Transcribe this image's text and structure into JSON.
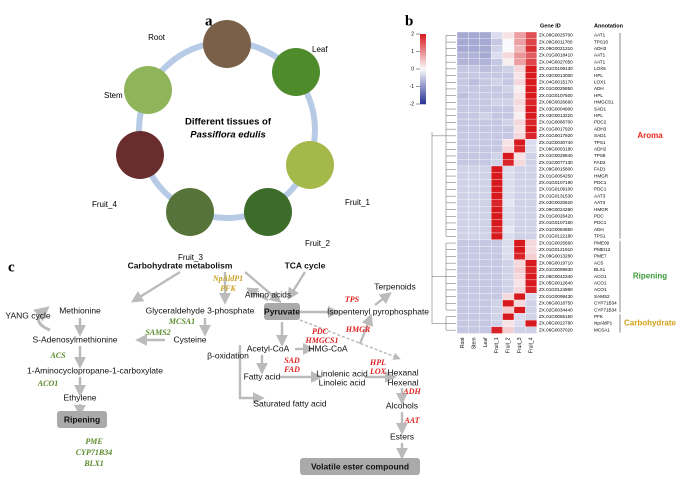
{
  "panel_a": {
    "label": "a",
    "center_title": "Different tissues of",
    "center_species": "Passiflora edulis",
    "tissues": [
      "Root",
      "Leaf",
      "Fruit_1",
      "Fruit_2",
      "Fruit_3",
      "Fruit_4",
      "Stem"
    ]
  },
  "panel_b": {
    "label": "b",
    "type": "heatmap",
    "header_gene": "Gene ID",
    "header_annotation": "Annotation",
    "columns": [
      "Root",
      "Stem",
      "Leaf",
      "Fruit_1",
      "Fruit_2",
      "Fruit_3",
      "Fruit_4"
    ],
    "colorbar_lim": [
      -2,
      2
    ],
    "colorbar_ticks": [
      2,
      1,
      0,
      -1,
      -2
    ],
    "groups": [
      {
        "name": "Aroma",
        "color": "#e8271c",
        "rows": [
          {
            "gene": "ZX.09G0025700",
            "annotation": "AAT1",
            "values": [
              -0.8,
              -0.8,
              -0.8,
              -0.3,
              0.2,
              0.8,
              1.5
            ]
          },
          {
            "gene": "ZX.08G0011780",
            "annotation": "TPS10",
            "values": [
              -0.8,
              -0.8,
              -0.8,
              -0.5,
              0,
              0.8,
              1.6
            ]
          },
          {
            "gene": "ZX.09G0021310",
            "annotation": "ADH3",
            "values": [
              -0.8,
              -0.8,
              -0.8,
              -0.4,
              0,
              0.6,
              1.8
            ]
          },
          {
            "gene": "ZX.01G0018410",
            "annotation": "AAT1",
            "values": [
              -0.7,
              -0.7,
              -0.8,
              -0.3,
              0.3,
              0.9,
              1.4
            ]
          },
          {
            "gene": "ZX.04G0027050",
            "annotation": "AAT1",
            "values": [
              -0.7,
              -0.7,
              -0.7,
              -0.5,
              0.1,
              0.8,
              1.6
            ]
          },
          {
            "gene": "ZX.01G0109130",
            "annotation": "LOX5",
            "values": [
              -0.5,
              -0.5,
              -0.6,
              -0.5,
              -0.4,
              0.3,
              2
            ]
          },
          {
            "gene": "ZX.03G0013000",
            "annotation": "HPL",
            "values": [
              -0.5,
              -0.5,
              -0.5,
              -0.5,
              -0.5,
              0.2,
              2
            ]
          },
          {
            "gene": "ZX.04G0015170",
            "annotation": "LOX1",
            "values": [
              -0.5,
              -0.6,
              -0.5,
              -0.4,
              -0.5,
              0.3,
              2
            ]
          },
          {
            "gene": "ZX.01G0025850",
            "annotation": "ADH",
            "values": [
              -0.5,
              -0.5,
              -0.5,
              -0.5,
              -0.4,
              0.1,
              2
            ]
          },
          {
            "gene": "ZX.01G0107500",
            "annotation": "HPL",
            "values": [
              -0.6,
              -0.5,
              -0.5,
              -0.5,
              -0.5,
              0.2,
              2
            ]
          },
          {
            "gene": "ZX.06G0026660",
            "annotation": "HMGCS1",
            "values": [
              -0.5,
              -0.5,
              -0.5,
              -0.4,
              -0.4,
              0.3,
              1.9
            ]
          },
          {
            "gene": "ZX.03G0004900",
            "annotation": "SAD1",
            "values": [
              -0.5,
              -0.5,
              -0.5,
              -0.5,
              -0.5,
              0.2,
              2
            ]
          },
          {
            "gene": "ZX.03G0013220",
            "annotation": "HPL",
            "values": [
              -0.5,
              -0.5,
              -0.4,
              -0.5,
              -0.5,
              0.1,
              2
            ]
          },
          {
            "gene": "ZX.01G0066700",
            "annotation": "PDC2",
            "values": [
              -0.5,
              -0.5,
              -0.5,
              -0.5,
              -0.4,
              0.3,
              1.9
            ]
          },
          {
            "gene": "ZX.01G0017920",
            "annotation": "ADH3",
            "values": [
              -0.5,
              -0.5,
              -0.5,
              -0.5,
              -0.5,
              0.2,
              2
            ]
          },
          {
            "gene": "ZX.01G0017920",
            "annotation": "SAD1",
            "values": [
              -0.5,
              -0.5,
              -0.5,
              -0.5,
              -0.5,
              0.3,
              1.9
            ]
          },
          {
            "gene": "ZX.01G0030740",
            "annotation": "TPS1",
            "values": [
              -0.5,
              -0.5,
              -0.5,
              -0.5,
              0.2,
              2,
              -0.3
            ]
          },
          {
            "gene": "ZX.09G0003180",
            "annotation": "ADH2",
            "values": [
              -0.5,
              -0.5,
              -0.5,
              -0.5,
              0.3,
              1.9,
              -0.3
            ]
          },
          {
            "gene": "ZX.01G0029840",
            "annotation": "TPS8",
            "values": [
              -0.5,
              -0.5,
              -0.5,
              -0.4,
              2,
              0.2,
              -0.4
            ]
          },
          {
            "gene": "ZX.01G0077130",
            "annotation": "FAD2",
            "values": [
              -0.5,
              -0.5,
              -0.5,
              -0.4,
              1.9,
              0.3,
              -0.4
            ]
          },
          {
            "gene": "ZX.09G0015800",
            "annotation": "FAD1",
            "values": [
              -0.4,
              -0.4,
              -0.4,
              2,
              -0.3,
              -0.4,
              -0.4
            ]
          },
          {
            "gene": "ZX.01G0054250",
            "annotation": "HMGR",
            "values": [
              -0.4,
              -0.4,
              -0.4,
              2,
              -0.3,
              -0.4,
              -0.4
            ]
          },
          {
            "gene": "ZX.01G0107190",
            "annotation": "PDC1",
            "values": [
              -0.4,
              -0.4,
              -0.4,
              2,
              -0.3,
              -0.4,
              -0.4
            ]
          },
          {
            "gene": "ZX.01G0109100",
            "annotation": "PDC1",
            "values": [
              -0.4,
              -0.4,
              -0.4,
              2,
              -0.3,
              -0.4,
              -0.4
            ]
          },
          {
            "gene": "ZX.01G0131530",
            "annotation": "AAT3",
            "values": [
              -0.4,
              -0.4,
              -0.4,
              2,
              -0.3,
              -0.4,
              -0.4
            ]
          },
          {
            "gene": "ZX.03G0020620",
            "annotation": "AAT3",
            "values": [
              -0.4,
              -0.4,
              -0.4,
              1.9,
              -0.2,
              -0.4,
              -0.4
            ]
          },
          {
            "gene": "ZX.09G0024280",
            "annotation": "HMGR",
            "values": [
              -0.4,
              -0.4,
              -0.4,
              2,
              -0.3,
              -0.4,
              -0.4
            ]
          },
          {
            "gene": "ZX.01G0026420",
            "annotation": "PDC",
            "values": [
              -0.4,
              -0.4,
              -0.4,
              2,
              -0.3,
              -0.4,
              -0.4
            ]
          },
          {
            "gene": "ZX.01G0107160",
            "annotation": "PDC1",
            "values": [
              -0.4,
              -0.4,
              -0.4,
              2,
              -0.3,
              -0.4,
              -0.4
            ]
          },
          {
            "gene": "ZX.01G0084850",
            "annotation": "ADH",
            "values": [
              -0.4,
              -0.4,
              -0.4,
              1.9,
              -0.2,
              -0.4,
              -0.4
            ]
          },
          {
            "gene": "ZX.01G0122180",
            "annotation": "TPS1",
            "values": [
              -0.4,
              -0.4,
              -0.4,
              2,
              -0.3,
              -0.4,
              -0.4
            ]
          }
        ]
      },
      {
        "name": "Ripening",
        "color": "#3a9a3a",
        "rows": [
          {
            "gene": "ZX.01G0025660",
            "annotation": "PME09",
            "values": [
              -0.5,
              -0.5,
              -0.5,
              -0.5,
              -0.3,
              2,
              0.3
            ]
          },
          {
            "gene": "ZX.01G0121910",
            "annotation": "PMEI12",
            "values": [
              -0.5,
              -0.5,
              -0.5,
              -0.5,
              -0.3,
              2,
              0.3
            ]
          },
          {
            "gene": "ZX.09G0013280",
            "annotation": "PME7",
            "values": [
              -0.5,
              -0.5,
              -0.5,
              -0.5,
              -0.3,
              1.9,
              0.4
            ]
          },
          {
            "gene": "ZX.06G0019710",
            "annotation": "ACS",
            "values": [
              -0.5,
              -0.5,
              -0.5,
              -0.5,
              -0.4,
              0.3,
              2
            ]
          },
          {
            "gene": "ZX.01G0099930",
            "annotation": "BLX1",
            "values": [
              -0.5,
              -0.5,
              -0.5,
              -0.5,
              -0.4,
              0.4,
              1.9
            ]
          },
          {
            "gene": "ZX.06G0042340",
            "annotation": "ACO1",
            "values": [
              -0.5,
              -0.5,
              -0.5,
              -0.5,
              -0.4,
              0.3,
              2
            ]
          },
          {
            "gene": "ZX.05G0012640",
            "annotation": "ACO1",
            "values": [
              -0.5,
              -0.5,
              -0.5,
              -0.5,
              -0.4,
              0.2,
              2
            ]
          },
          {
            "gene": "ZX.01G0124860",
            "annotation": "ACO1",
            "values": [
              -0.5,
              -0.5,
              -0.5,
              -0.5,
              -0.4,
              0.3,
              1.9
            ]
          },
          {
            "gene": "ZX.01G0099430",
            "annotation": "SAMS2",
            "values": [
              -0.5,
              -0.5,
              -0.5,
              -0.5,
              0.3,
              2,
              -0.3
            ]
          },
          {
            "gene": "ZX.06G0018750",
            "annotation": "CYP71B34",
            "values": [
              -0.5,
              -0.5,
              -0.5,
              -0.4,
              2,
              0.3,
              -0.4
            ]
          },
          {
            "gene": "ZX.02G0034440",
            "annotation": "CYP71B34",
            "values": [
              -0.5,
              -0.5,
              -0.5,
              -0.4,
              0.4,
              2,
              -0.4
            ]
          }
        ]
      },
      {
        "name": "Carbohydrate",
        "color": "#d4a017",
        "rows": [
          {
            "gene": "ZX.01G0065150",
            "annotation": "PFK",
            "values": [
              -0.5,
              -0.5,
              -0.5,
              -0.4,
              2,
              -0.3,
              -0.4
            ]
          },
          {
            "gene": "ZX.06G0022780",
            "annotation": "NpAldP1",
            "values": [
              -0.5,
              -0.5,
              -0.5,
              -0.4,
              0.2,
              -0.3,
              2
            ]
          },
          {
            "gene": "ZX.06G0037020",
            "annotation": "MCSA1",
            "values": [
              -0.5,
              -0.5,
              -0.5,
              1.9,
              0.4,
              -0.4,
              -0.4
            ]
          }
        ]
      }
    ]
  },
  "panel_c": {
    "label": "c",
    "compounds": [
      "Carbohydrate metabolism",
      "TCA cycle",
      "Amino acids",
      "Pyruvate",
      "Terpenoids",
      "Methionine",
      "Glyceraldehyde 3-phosphate",
      "Isopentenyl pyrophosphate",
      "YANG cycle",
      "S-Adenosylmethionine",
      "Cysteine",
      "β-oxidation",
      "Acetyl-CoA",
      "HMG-CoA",
      "1-Aminocyclopropane-1-carboxylate",
      "Fatty acid",
      "Linolenic acid",
      "Linoleic acid",
      "Hexanal",
      "Hexenal",
      "Ethylene",
      "Alcohols",
      "Saturated fatty acid",
      "Ripening",
      "Esters",
      "Volatile ester compound"
    ],
    "carbohydrate_enzymes": [
      "NpAldP1",
      "PFK"
    ],
    "ripening_enzymes": [
      "MCSA1",
      "SAMS2",
      "ACS",
      "ACO1",
      "PME",
      "CYP71B34",
      "BLX1"
    ],
    "aroma_enzymes": [
      "TPS",
      "PDC",
      "HMGCS1",
      "HMGR",
      "SAD",
      "FAD",
      "HPL",
      "LOX",
      "ADH",
      "AAT"
    ]
  }
}
